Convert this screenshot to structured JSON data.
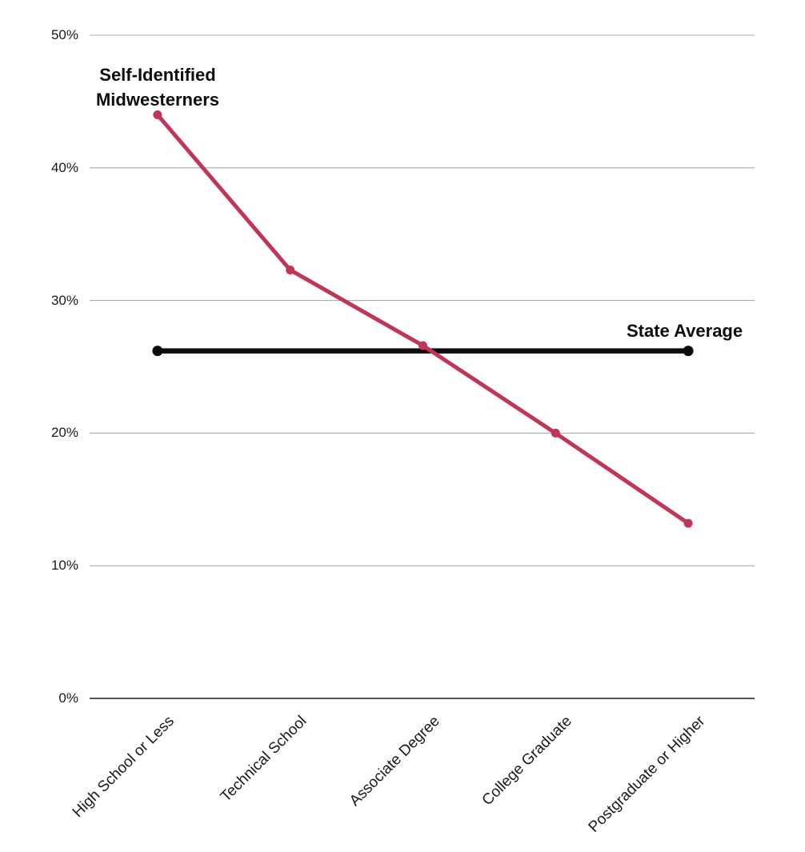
{
  "chart_data": {
    "type": "line",
    "categories": [
      "High School or Less",
      "Technical School",
      "Associate Degree",
      "College Graduate",
      "Postgraduate or Higher"
    ],
    "series": [
      {
        "name": "Self-Identified Midwesterners",
        "values": [
          44,
          32.3,
          26.6,
          20,
          13.2
        ],
        "color": "#c23556",
        "markers": true
      },
      {
        "name": "State Average",
        "type": "constant-line",
        "value": 26.2,
        "color": "#0d0d0d",
        "markers": true
      }
    ],
    "title": "",
    "xlabel": "",
    "ylabel": "",
    "ylim": [
      0,
      50
    ],
    "yticks": [
      0,
      10,
      20,
      30,
      40,
      50
    ],
    "ytick_labels": [
      "0%",
      "10%",
      "20%",
      "30%",
      "40%",
      "50%"
    ],
    "grid": true,
    "legend_position": "inline-annotations"
  },
  "annotations": {
    "midwesterners_line1": "Self-Identified",
    "midwesterners_line2": "Midwesterners",
    "state_average": "State Average"
  },
  "colors": {
    "series_line": "#c23556",
    "average_line": "#0d0d0d",
    "grid": "#aaaaaa",
    "axis": "#1a1a1a",
    "background": "#ffffff",
    "text": "#1a1a1a"
  }
}
